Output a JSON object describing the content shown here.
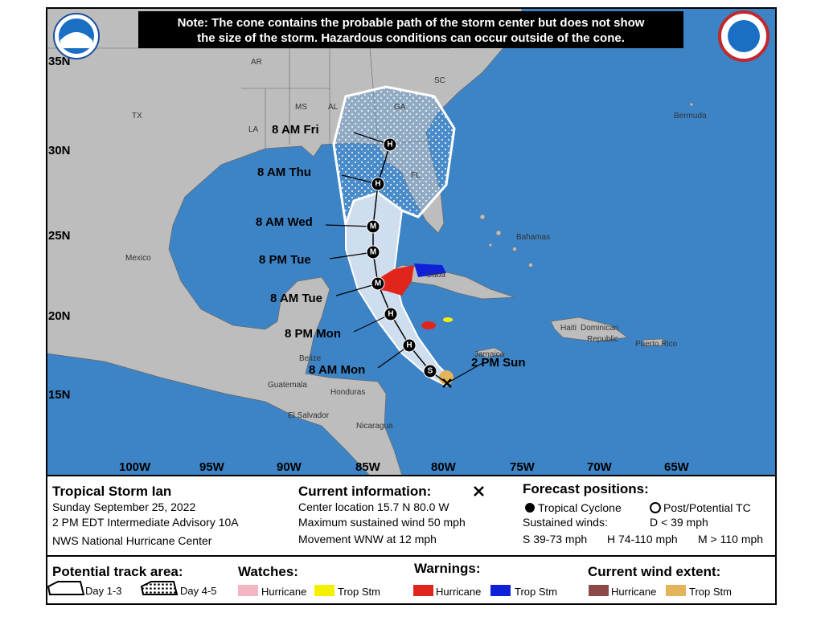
{
  "note": {
    "lines": [
      "Note: The cone contains the probable path of the storm center but does not show",
      "the size of the storm. Hazardous conditions can occur outside of the cone."
    ]
  },
  "map": {
    "lat_labels": [
      "35N",
      "30N",
      "25N",
      "20N",
      "15N"
    ],
    "lon_labels": [
      "100W",
      "95W",
      "90W",
      "85W",
      "80W",
      "75W",
      "70W",
      "65W"
    ],
    "places": [
      "AR",
      "MS",
      "AL",
      "GA",
      "SC",
      "LA",
      "TX",
      "FL",
      "Mexico",
      "Bahamas",
      "Bermuda",
      "Cuba",
      "Haiti",
      "Dominican",
      "Republic",
      "Jamaica",
      "Puerto Rico",
      "Belize",
      "Guatemala",
      "Honduras",
      "El Salvador",
      "Nicaragua"
    ],
    "forecast_points": [
      {
        "label": "8 AM Fri",
        "marker": "H"
      },
      {
        "label": "8 AM Thu",
        "marker": "H"
      },
      {
        "label": "8 AM Wed",
        "marker": "M"
      },
      {
        "label": "8 PM Tue",
        "marker": "M"
      },
      {
        "label": "8 AM Tue",
        "marker": "M"
      },
      {
        "label": "8 PM Mon",
        "marker": "H"
      },
      {
        "label": "8 AM Mon",
        "marker": "H"
      },
      {
        "label": "",
        "marker": "S"
      }
    ],
    "current_label": "2 PM Sun"
  },
  "info": {
    "title": "Tropical Storm Ian",
    "lines": [
      "Sunday September 25, 2022",
      "2 PM EDT Intermediate Advisory 10A",
      "NWS National Hurricane Center"
    ]
  },
  "current": {
    "title": "Current information:",
    "lines": [
      "Center location 15.7 N 80.0 W",
      "Maximum sustained wind 50 mph",
      "Movement WNW at 12 mph"
    ]
  },
  "forecast": {
    "title": "Forecast positions:",
    "tropical": "Tropical Cyclone",
    "post": "Post/Potential TC",
    "winds": "Sustained winds:",
    "d": "D < 39 mph",
    "s": "S 39-73 mph",
    "h": "H 74-110 mph",
    "m": "M > 110 mph"
  },
  "legend": {
    "track": "Potential track area:",
    "day13": "Day 1-3",
    "day45": "Day 4-5",
    "watches": "Watches:",
    "warnings": "Warnings:",
    "extent": "Current wind extent:",
    "hurricane": "Hurricane",
    "tropstm": "Trop Stm"
  }
}
